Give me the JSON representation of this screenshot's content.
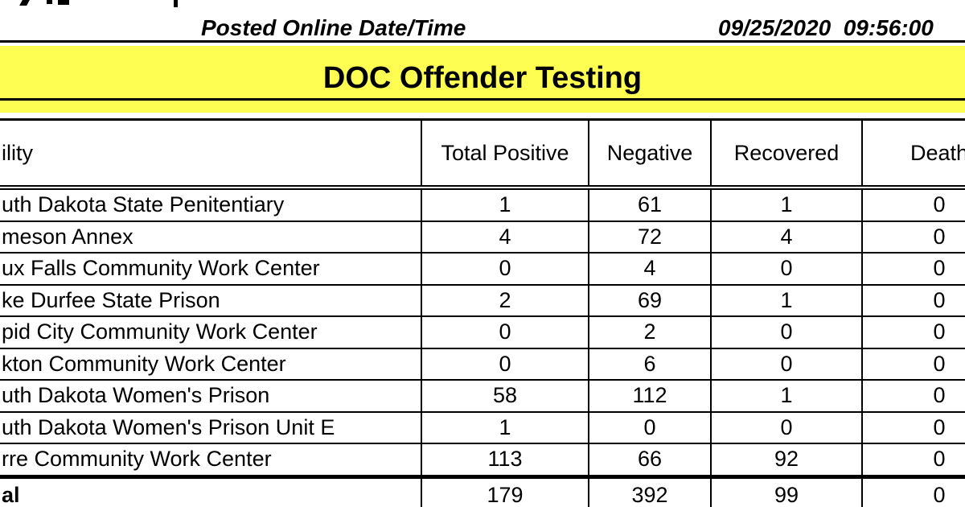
{
  "header": {
    "posted_label": "Posted Online Date/Time",
    "posted_datetime": "09/25/2020  09:56:00"
  },
  "banner": {
    "title": "DOC Offender Testing",
    "background": "#fdfd52"
  },
  "table": {
    "columns": {
      "facility": "ility",
      "total_positive": "Total Positive",
      "negative": "Negative",
      "recovered": "Recovered",
      "deaths": "Death"
    },
    "rows": [
      {
        "facility": "uth Dakota State Penitentiary",
        "total_positive": "1",
        "negative": "61",
        "recovered": "1",
        "deaths": "0"
      },
      {
        "facility": "meson Annex",
        "total_positive": "4",
        "negative": "72",
        "recovered": "4",
        "deaths": "0"
      },
      {
        "facility": "ux Falls Community Work Center",
        "total_positive": "0",
        "negative": "4",
        "recovered": "0",
        "deaths": "0"
      },
      {
        "facility": "ke Durfee State Prison",
        "total_positive": "2",
        "negative": "69",
        "recovered": "1",
        "deaths": "0"
      },
      {
        "facility": "pid City Community Work Center",
        "total_positive": "0",
        "negative": "2",
        "recovered": "0",
        "deaths": "0"
      },
      {
        "facility": "kton Community Work Center",
        "total_positive": "0",
        "negative": "6",
        "recovered": "0",
        "deaths": "0"
      },
      {
        "facility": "uth Dakota Women's Prison",
        "total_positive": "58",
        "negative": "112",
        "recovered": "1",
        "deaths": "0"
      },
      {
        "facility": "uth Dakota Women's Prison Unit E",
        "total_positive": "1",
        "negative": "0",
        "recovered": "0",
        "deaths": "0"
      },
      {
        "facility": "rre Community Work Center",
        "total_positive": "113",
        "negative": "66",
        "recovered": "92",
        "deaths": "0"
      }
    ],
    "total": {
      "facility": "al",
      "total_positive": "179",
      "negative": "392",
      "recovered": "99",
      "deaths": "0"
    }
  }
}
